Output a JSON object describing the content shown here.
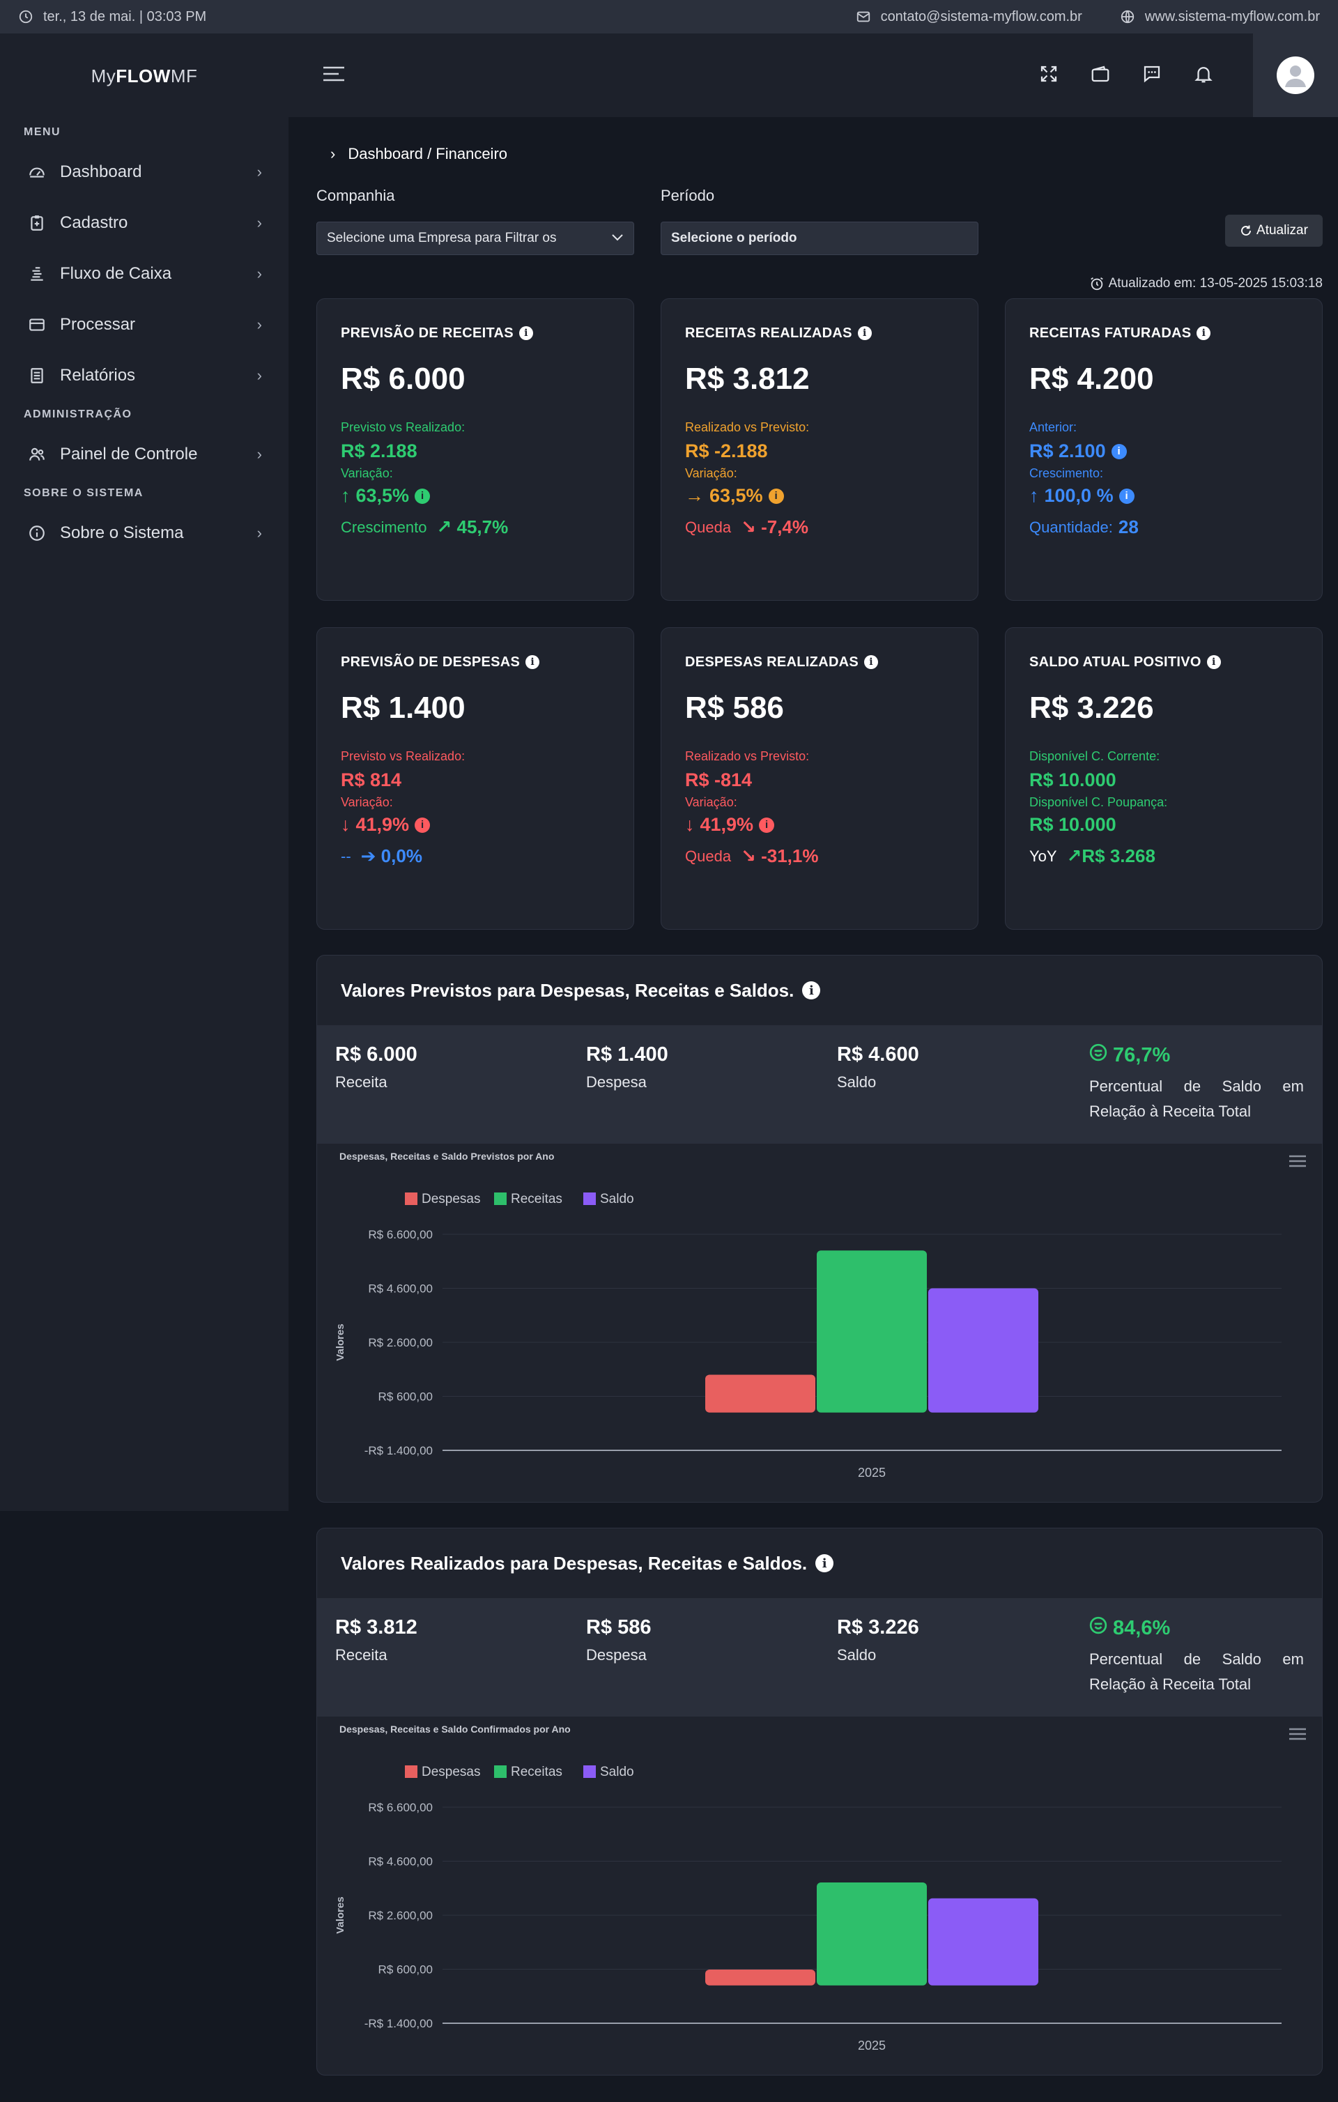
{
  "topbar": {
    "datetime": "ter., 13 de mai. | 03:03 PM",
    "email": "contato@sistema-myflow.com.br",
    "website": "www.sistema-myflow.com.br"
  },
  "logo": {
    "prefix": "My",
    "bold": "FLOW",
    "suffix": "MF"
  },
  "sidebar": {
    "sections": [
      {
        "title": "MENU",
        "items": [
          {
            "label": "Dashboard",
            "icon": "dashboard-icon"
          },
          {
            "label": "Cadastro",
            "icon": "clipboard-icon"
          },
          {
            "label": "Fluxo de Caixa",
            "icon": "cash-flow-icon"
          },
          {
            "label": "Processar",
            "icon": "card-icon"
          },
          {
            "label": "Relatórios",
            "icon": "report-icon"
          }
        ]
      },
      {
        "title": "ADMINISTRAÇÃO",
        "items": [
          {
            "label": "Painel de Controle",
            "icon": "users-icon"
          }
        ]
      },
      {
        "title": "SOBRE O SISTEMA",
        "items": [
          {
            "label": "Sobre o Sistema",
            "icon": "info-circle-icon"
          }
        ]
      }
    ]
  },
  "breadcrumb": "Dashboard / Financeiro",
  "filters": {
    "company_label": "Companhia",
    "company_value": "Selecione uma Empresa para Filtrar os",
    "period_label": "Período",
    "period_value": "Selecione o período",
    "refresh_label": "Atualizar"
  },
  "updated": "Atualizado em: 13-05-2025 15:03:18",
  "cards": {
    "c1": {
      "title": "PREVISÃO DE RECEITAS",
      "value": "R$ 6.000",
      "l1": "Previsto vs Realizado:",
      "v1": "R$ 2.188",
      "l2": "Variação:",
      "v2": "63,5%",
      "l3": "Crescimento",
      "v3": "45,7%"
    },
    "c2": {
      "title": "RECEITAS REALIZADAS",
      "value": "R$ 3.812",
      "l1": "Realizado vs Previsto:",
      "v1": "R$ -2.188",
      "l2": "Variação:",
      "v2": "63,5%",
      "l3": "Queda",
      "v3": "-7,4%"
    },
    "c3": {
      "title": "RECEITAS FATURADAS",
      "value": "R$ 4.200",
      "l1": "Anterior:",
      "v1": "R$ 2.100",
      "l2": "Crescimento:",
      "v2": "100,0 %",
      "l3": "Quantidade:",
      "v3": "28"
    },
    "c4": {
      "title": "PREVISÃO DE DESPESAS",
      "value": "R$ 1.400",
      "l1": "Previsto vs Realizado:",
      "v1": "R$ 814",
      "l2": "Variação:",
      "v2": "41,9%",
      "l3": "--",
      "v3": "0,0%"
    },
    "c5": {
      "title": "DESPESAS REALIZADAS",
      "value": "R$ 586",
      "l1": "Realizado vs Previsto:",
      "v1": "R$ -814",
      "l2": "Variação:",
      "v2": "41,9%",
      "l3": "Queda",
      "v3": "-31,1%"
    },
    "c6": {
      "title": "SALDO ATUAL POSITIVO",
      "value": "R$ 3.226",
      "l1": "Disponível C. Corrente:",
      "v1": "R$ 10.000",
      "l2": "Disponível C. Poupança:",
      "v2": "R$ 10.000",
      "l3": "YoY",
      "v3": "R$ 3.268"
    }
  },
  "panels": {
    "p1": {
      "title": "Valores Previstos para Despesas, Receitas e Saldos.",
      "receita_v": "R$ 6.000",
      "receita_l": "Receita",
      "despesa_v": "R$ 1.400",
      "despesa_l": "Despesa",
      "saldo_v": "R$ 4.600",
      "saldo_l": "Saldo",
      "pct_v": "76,7%",
      "pct_l": "Percentual de Saldo em Relação à Receita Total",
      "chart_title": "Despesas, Receitas e Saldo Previstos por Ano"
    },
    "p2": {
      "title": "Valores Realizados para Despesas, Receitas e Saldos.",
      "receita_v": "R$ 3.812",
      "receita_l": "Receita",
      "despesa_v": "R$ 586",
      "despesa_l": "Despesa",
      "saldo_v": "R$ 3.226",
      "saldo_l": "Saldo",
      "pct_v": "84,6%",
      "pct_l": "Percentual de Saldo em Relação à Receita Total",
      "chart_title": "Despesas, Receitas e Saldo Confirmados por Ano"
    }
  },
  "colors": {
    "despesas": "#e8605f",
    "receitas": "#2ebf6b",
    "saldo": "#8b5cf6",
    "green": "#2ecc71",
    "orange": "#f0a22e",
    "red": "#ff5a5f",
    "blue": "#3d8bfd"
  },
  "chart_data": [
    {
      "type": "bar",
      "title": "Despesas, Receitas e Saldo Previstos por Ano",
      "categories": [
        "2025"
      ],
      "series": [
        {
          "name": "Despesas",
          "values": [
            1400
          ]
        },
        {
          "name": "Receitas",
          "values": [
            6000
          ]
        },
        {
          "name": "Saldo",
          "values": [
            4600
          ]
        }
      ],
      "ylabel": "Valores",
      "yticks": [
        "R$ 6.600,00",
        "R$ 4.600,00",
        "R$ 2.600,00",
        "R$ 600,00",
        "-R$ 1.400,00"
      ],
      "ylim": [
        -1400,
        6600
      ],
      "legend": "top-left",
      "grid": true
    },
    {
      "type": "bar",
      "title": "Despesas, Receitas e Saldo Confirmados por Ano",
      "categories": [
        "2025"
      ],
      "series": [
        {
          "name": "Despesas",
          "values": [
            586
          ]
        },
        {
          "name": "Receitas",
          "values": [
            3812
          ]
        },
        {
          "name": "Saldo",
          "values": [
            3226
          ]
        }
      ],
      "ylabel": "Valores",
      "yticks": [
        "R$ 6.600,00",
        "R$ 4.600,00",
        "R$ 2.600,00",
        "R$ 600,00",
        "-R$ 1.400,00"
      ],
      "ylim": [
        -1400,
        6600
      ],
      "legend": "top-left",
      "grid": true
    }
  ]
}
